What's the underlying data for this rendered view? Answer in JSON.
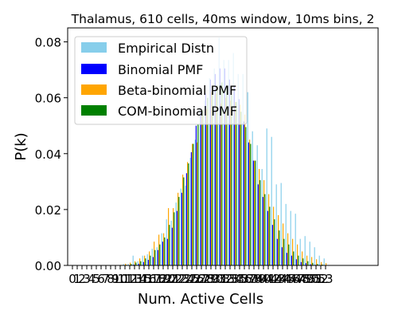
{
  "chart_data": {
    "type": "bar",
    "title": "Thalamus, 610 cells, 40ms window, 10ms bins, 2",
    "xlabel": "Num. Active Cells",
    "ylabel": "P(k)",
    "xlim": [
      -1,
      64
    ],
    "ylim": [
      0,
      0.085
    ],
    "yticks": [
      0.0,
      0.02,
      0.04,
      0.06,
      0.08
    ],
    "ytick_labels": [
      "0.00",
      "0.02",
      "0.04",
      "0.06",
      "0.08"
    ],
    "xtick_labels": [
      "0",
      "1",
      "2",
      "3",
      "4",
      "5",
      "6",
      "7",
      "8",
      "9",
      "10",
      "11",
      "12",
      "13",
      "14",
      "15",
      "16",
      "17",
      "18",
      "19",
      "20",
      "21",
      "22",
      "23",
      "24",
      "25",
      "26",
      "27",
      "28",
      "29",
      "30",
      "31",
      "32",
      "33",
      "34",
      "35",
      "36",
      "37",
      "38",
      "39",
      "40",
      "41",
      "42",
      "43",
      "44",
      "45",
      "46",
      "47",
      "48",
      "49",
      "50",
      "51",
      "52",
      "53"
    ],
    "legend_position": "top-left",
    "colors": {
      "empirical": "#87ceeb",
      "binomial": "#0000ff",
      "betabinomial": "#ffa500",
      "combinomial": "#008000"
    },
    "x": [
      0,
      1,
      2,
      3,
      4,
      5,
      6,
      7,
      8,
      9,
      10,
      11,
      12,
      13,
      14,
      15,
      16,
      17,
      18,
      19,
      20,
      21,
      22,
      23,
      24,
      25,
      26,
      27,
      28,
      29,
      30,
      31,
      32,
      33,
      34,
      35,
      36,
      37,
      38,
      39,
      40,
      41,
      42,
      43,
      44,
      45,
      46,
      47,
      48,
      49,
      50,
      51,
      52,
      53
    ],
    "series": [
      {
        "name": "Empirical Distn",
        "key": "empirical",
        "values": [
          0,
          0,
          0,
          0,
          0,
          0,
          0,
          0,
          0,
          0,
          0,
          0.0005,
          0.0005,
          0.0035,
          0.0015,
          0.0035,
          0.004,
          0.006,
          0.0065,
          0.0115,
          0.0165,
          0.016,
          0.0225,
          0.0275,
          0.0285,
          0.0385,
          0.045,
          0.056,
          0.059,
          0.067,
          0.0705,
          0.0815,
          0.0735,
          0.0735,
          0.076,
          0.0685,
          0.0685,
          0.062,
          0.048,
          0.043,
          0.0345,
          0.049,
          0.046,
          0.029,
          0.0295,
          0.022,
          0.0195,
          0.0185,
          0.0095,
          0.0105,
          0.0085,
          0.0065,
          0.0035,
          0.0025
        ]
      },
      {
        "name": "Binomial PMF",
        "key": "binomial",
        "values": [
          0,
          0,
          0,
          0,
          0,
          0,
          0,
          0,
          0,
          0,
          0,
          0,
          0,
          0.0003,
          0.0006,
          0.0012,
          0.002,
          0.003,
          0.0055,
          0.0085,
          0.0095,
          0.0135,
          0.0195,
          0.026,
          0.033,
          0.0405,
          0.05,
          0.055,
          0.0615,
          0.0665,
          0.0685,
          0.0705,
          0.0705,
          0.0665,
          0.064,
          0.0595,
          0.0515,
          0.044,
          0.0375,
          0.029,
          0.0245,
          0.0195,
          0.0145,
          0.0095,
          0.0065,
          0.0045,
          0.0035,
          0.0022,
          0.0012,
          0.0008,
          0.0004,
          0.0002,
          0.0001,
          0
        ]
      },
      {
        "name": "Beta-binomial PMF",
        "key": "betabinomial",
        "values": [
          0,
          0,
          0,
          0,
          0,
          0,
          0,
          0,
          0,
          0,
          0.0002,
          0.0006,
          0.001,
          0.0015,
          0.0025,
          0.0035,
          0.005,
          0.0085,
          0.011,
          0.0115,
          0.0205,
          0.0205,
          0.026,
          0.0325,
          0.037,
          0.0435,
          0.044,
          0.054,
          0.056,
          0.062,
          0.0615,
          0.058,
          0.06,
          0.059,
          0.0585,
          0.0575,
          0.054,
          0.045,
          0.0375,
          0.0345,
          0.0305,
          0.0255,
          0.021,
          0.018,
          0.015,
          0.0115,
          0.0095,
          0.0075,
          0.005,
          0.0035,
          0.003,
          0.0022,
          0.0012,
          0.0008
        ]
      },
      {
        "name": "COM-binomial PMF",
        "key": "combinomial",
        "values": [
          0,
          0,
          0,
          0,
          0,
          0,
          0,
          0,
          0,
          0,
          0,
          0.0002,
          0.0005,
          0.001,
          0.0015,
          0.0025,
          0.0035,
          0.0055,
          0.0075,
          0.01,
          0.0145,
          0.019,
          0.0245,
          0.0315,
          0.0365,
          0.0435,
          0.0505,
          0.0555,
          0.06,
          0.062,
          0.0645,
          0.0655,
          0.0645,
          0.061,
          0.0585,
          0.055,
          0.0495,
          0.0435,
          0.0375,
          0.0305,
          0.0255,
          0.021,
          0.0165,
          0.0125,
          0.0095,
          0.0075,
          0.005,
          0.0035,
          0.0025,
          0.0015,
          0.0009,
          0.0005,
          0.0003,
          0.0001
        ]
      }
    ]
  }
}
